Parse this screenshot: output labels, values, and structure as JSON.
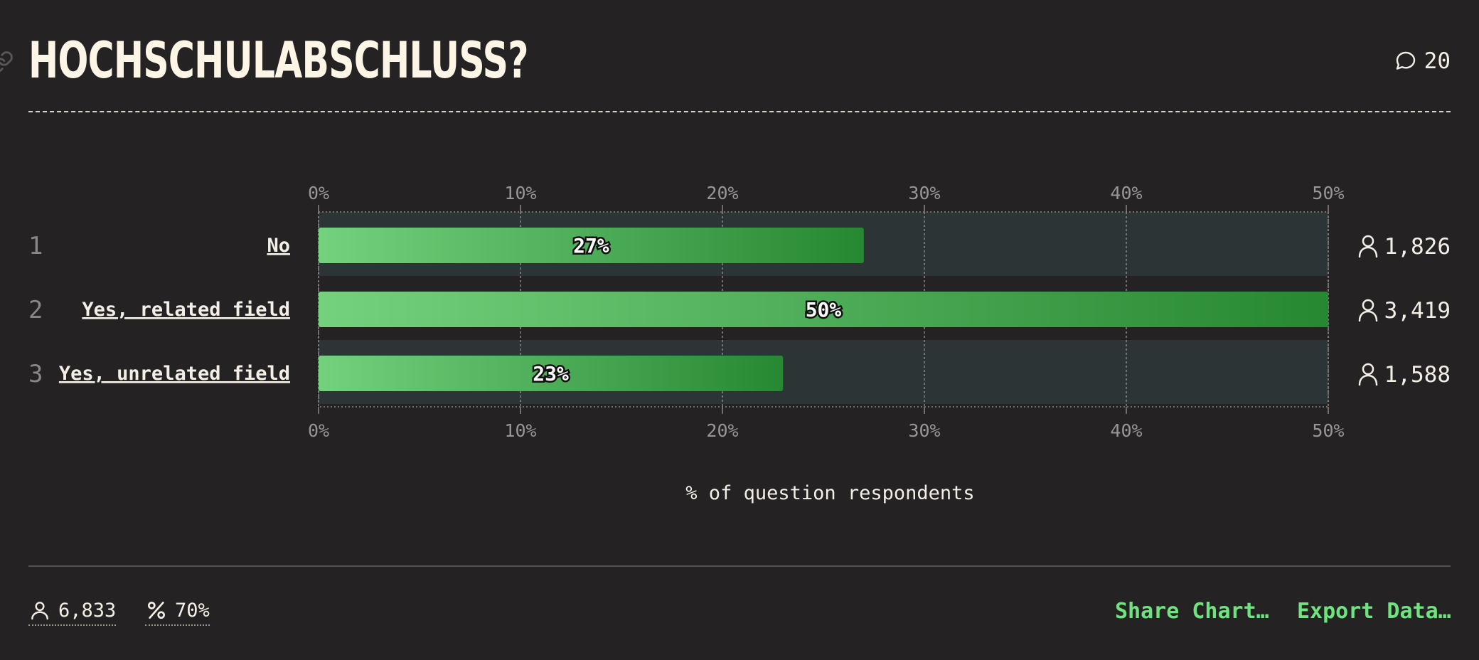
{
  "title": "HOCHSCHULABSCHLUSS?",
  "comments": {
    "count": "20"
  },
  "chart_data": {
    "type": "bar",
    "orientation": "horizontal",
    "categories": [
      "No",
      "Yes, related field",
      "Yes, unrelated field"
    ],
    "ranks": [
      "1",
      "2",
      "3"
    ],
    "values": [
      27,
      50,
      23
    ],
    "value_labels": [
      "27%",
      "50%",
      "23%"
    ],
    "counts": [
      "1,826",
      "3,419",
      "1,588"
    ],
    "xlim": [
      0,
      50
    ],
    "xticks": [
      0,
      10,
      20,
      30,
      40,
      50
    ],
    "xtick_labels": [
      "0%",
      "10%",
      "20%",
      "30%",
      "40%",
      "50%"
    ],
    "xlabel": "% of question respondents",
    "grid": true,
    "colors": {
      "bar_start": "#74d17d",
      "bar_end": "#278832",
      "track": "#2d3436",
      "grid": "#8a8788"
    }
  },
  "footer": {
    "respondents": "6,833",
    "percent": "70%",
    "share_label": "Share Chart…",
    "export_label": "Export Data…"
  },
  "colors": {
    "background": "#252224",
    "accent": "#6fe37f",
    "title": "#fdf6e6"
  }
}
